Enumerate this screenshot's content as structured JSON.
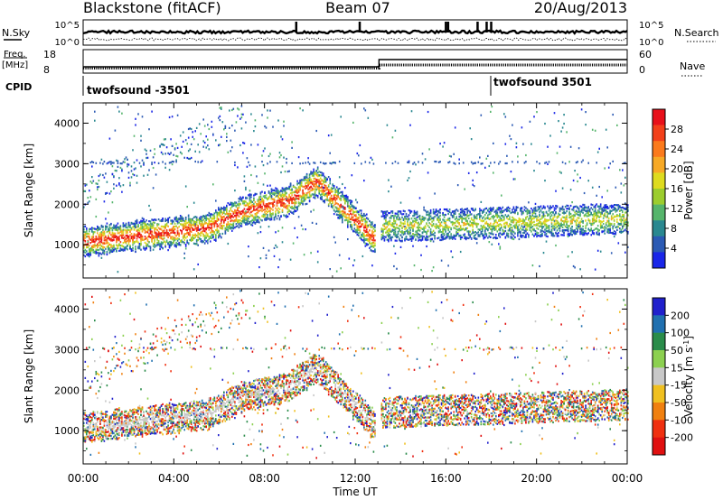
{
  "header": {
    "station": "Blackstone (fitACF)",
    "beam": "Beam 07",
    "date": "20/Aug/2013"
  },
  "noise_panel": {
    "left_label": "N.Sky",
    "right_label": "N.Search",
    "tick_top": "10^5",
    "tick_bottom": "10^0"
  },
  "freq_panel": {
    "left_label_1": "Freq.",
    "left_label_2": "[MHz]",
    "left_ticks": [
      "18",
      "8"
    ],
    "right_ticks": [
      "60",
      "0"
    ],
    "right_label": "Nave"
  },
  "cpid_panel": {
    "label": "CPID",
    "programs": [
      "twofsound -3501",
      "twofsound 3501"
    ]
  },
  "time_axis": {
    "label": "Time UT",
    "ticks": [
      "00:00",
      "04:00",
      "08:00",
      "12:00",
      "16:00",
      "20:00",
      "00:00"
    ]
  },
  "chart_data": [
    {
      "type": "heatmap",
      "name": "power",
      "ylabel": "Slant Range [km]",
      "yticks": [
        1000,
        2000,
        3000,
        4000
      ],
      "ylim": [
        180,
        4500
      ],
      "xlim_hours": [
        0,
        24
      ],
      "colorbar": {
        "label": "Power [dB]",
        "ticks": [
          "28",
          "24",
          "20",
          "16",
          "12",
          "8",
          "4"
        ],
        "colors": [
          "#e8101a",
          "#f3401a",
          "#fb7a1c",
          "#f7a926",
          "#dedb1f",
          "#9ccd2e",
          "#56b56c",
          "#2a8890",
          "#2b5ab4",
          "#1a26e8"
        ]
      },
      "features": [
        {
          "label": "main band",
          "range_start_km": 1050,
          "range_mid_km": 1800,
          "range_peak_km": 2500,
          "peak_time_h": 10.2,
          "end_time_h": 13
        }
      ]
    },
    {
      "type": "heatmap",
      "name": "velocity",
      "ylabel": "Slant Range [km]",
      "yticks": [
        1000,
        2000,
        3000,
        4000
      ],
      "ylim": [
        180,
        4500
      ],
      "xlim_hours": [
        0,
        24
      ],
      "colorbar": {
        "label": "Velocity [m s^-1]",
        "ticks": [
          "200",
          "100",
          "50",
          "15",
          "-15",
          "-50",
          "-100",
          "-200"
        ],
        "colors": [
          "#2020cc",
          "#2070b0",
          "#2a8c4a",
          "#8cd050",
          "#c8c8c8",
          "#f0c020",
          "#f08010",
          "#f03010",
          "#e01010"
        ]
      }
    }
  ]
}
